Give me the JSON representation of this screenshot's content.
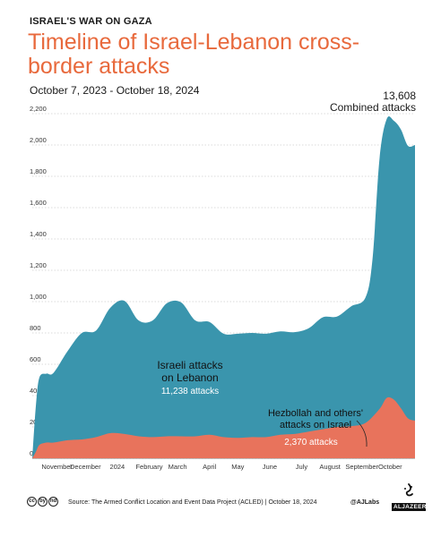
{
  "header": {
    "kicker": "ISRAEL'S WAR ON GAZA",
    "title": "Timeline of Israel-Lebanon cross-border attacks",
    "subtitle": "October 7, 2023 - October 18, 2024"
  },
  "chart_data": {
    "type": "area",
    "x_unit": "weeks since October 7, 2023",
    "xlim": [
      0,
      54
    ],
    "ylim": [
      0,
      2200
    ],
    "yticks": [
      0,
      200,
      400,
      600,
      800,
      1000,
      1200,
      1400,
      1600,
      1800,
      2000,
      2200
    ],
    "ytick_labels": [
      "0",
      "200",
      "400",
      "600",
      "800",
      "1,000",
      "1,200",
      "1,400",
      "1,600",
      "1,800",
      "2,000",
      "2,200"
    ],
    "xticks": [
      {
        "label": "November",
        "at": 3.5
      },
      {
        "label": "December",
        "at": 7.5
      },
      {
        "label": "2024",
        "at": 12
      },
      {
        "label": "February",
        "at": 16.5
      },
      {
        "label": "March",
        "at": 20.5
      },
      {
        "label": "April",
        "at": 25
      },
      {
        "label": "May",
        "at": 29
      },
      {
        "label": "June",
        "at": 33.5
      },
      {
        "label": "July",
        "at": 38
      },
      {
        "label": "August",
        "at": 42
      },
      {
        "label": "September",
        "at": 46.5
      },
      {
        "label": "October",
        "at": 50.5
      }
    ],
    "series": [
      {
        "name": "Hezbollah and others' attacks on Israel",
        "color": "#e8735c",
        "total_label": "2,370 attacks",
        "x": [
          0,
          0.5,
          1,
          2,
          3,
          5,
          7,
          9,
          11,
          13,
          15,
          17,
          19,
          21,
          23,
          25,
          27,
          29,
          31,
          33,
          35,
          37,
          39,
          41,
          43,
          45,
          47,
          49,
          50,
          51,
          52,
          53,
          54
        ],
        "y": [
          0,
          40,
          85,
          100,
          100,
          115,
          120,
          135,
          160,
          155,
          140,
          135,
          140,
          140,
          140,
          150,
          135,
          130,
          135,
          135,
          150,
          155,
          170,
          185,
          200,
          205,
          225,
          315,
          385,
          375,
          320,
          255,
          240
        ]
      },
      {
        "name": "Israeli attacks on Lebanon",
        "color": "#3a95ad",
        "total_label": "11,238 attacks",
        "x": [
          0,
          0.5,
          1,
          2,
          3,
          5,
          7,
          9,
          11,
          13,
          15,
          17,
          19,
          21,
          23,
          25,
          27,
          29,
          31,
          33,
          35,
          37,
          39,
          41,
          43,
          45,
          47,
          48,
          49,
          50,
          51,
          52,
          53,
          54
        ],
        "y": [
          0,
          290,
          430,
          440,
          445,
          570,
          680,
          680,
          800,
          850,
          740,
          745,
          850,
          855,
          740,
          720,
          660,
          665,
          665,
          660,
          660,
          650,
          660,
          715,
          705,
          765,
          800,
          1000,
          1600,
          1780,
          1780,
          1780,
          1740,
          1760
        ]
      }
    ],
    "annotations": {
      "combined_value": "13,608",
      "combined_label": "Combined attacks",
      "israel_label_line1": "Israeli attacks",
      "israel_label_line2": "on Lebanon",
      "hezbollah_label_line1": "Hezbollah and others'",
      "hezbollah_label_line2": "attacks on Israel"
    }
  },
  "footer": {
    "source": "Source: The Armed Conflict Location and Event Data Project (ACLED) | October 18, 2024",
    "handle": "@AJLabs",
    "logo_text": "ALJAZEERA",
    "license_icons": [
      "cc",
      "by",
      "nd"
    ]
  }
}
